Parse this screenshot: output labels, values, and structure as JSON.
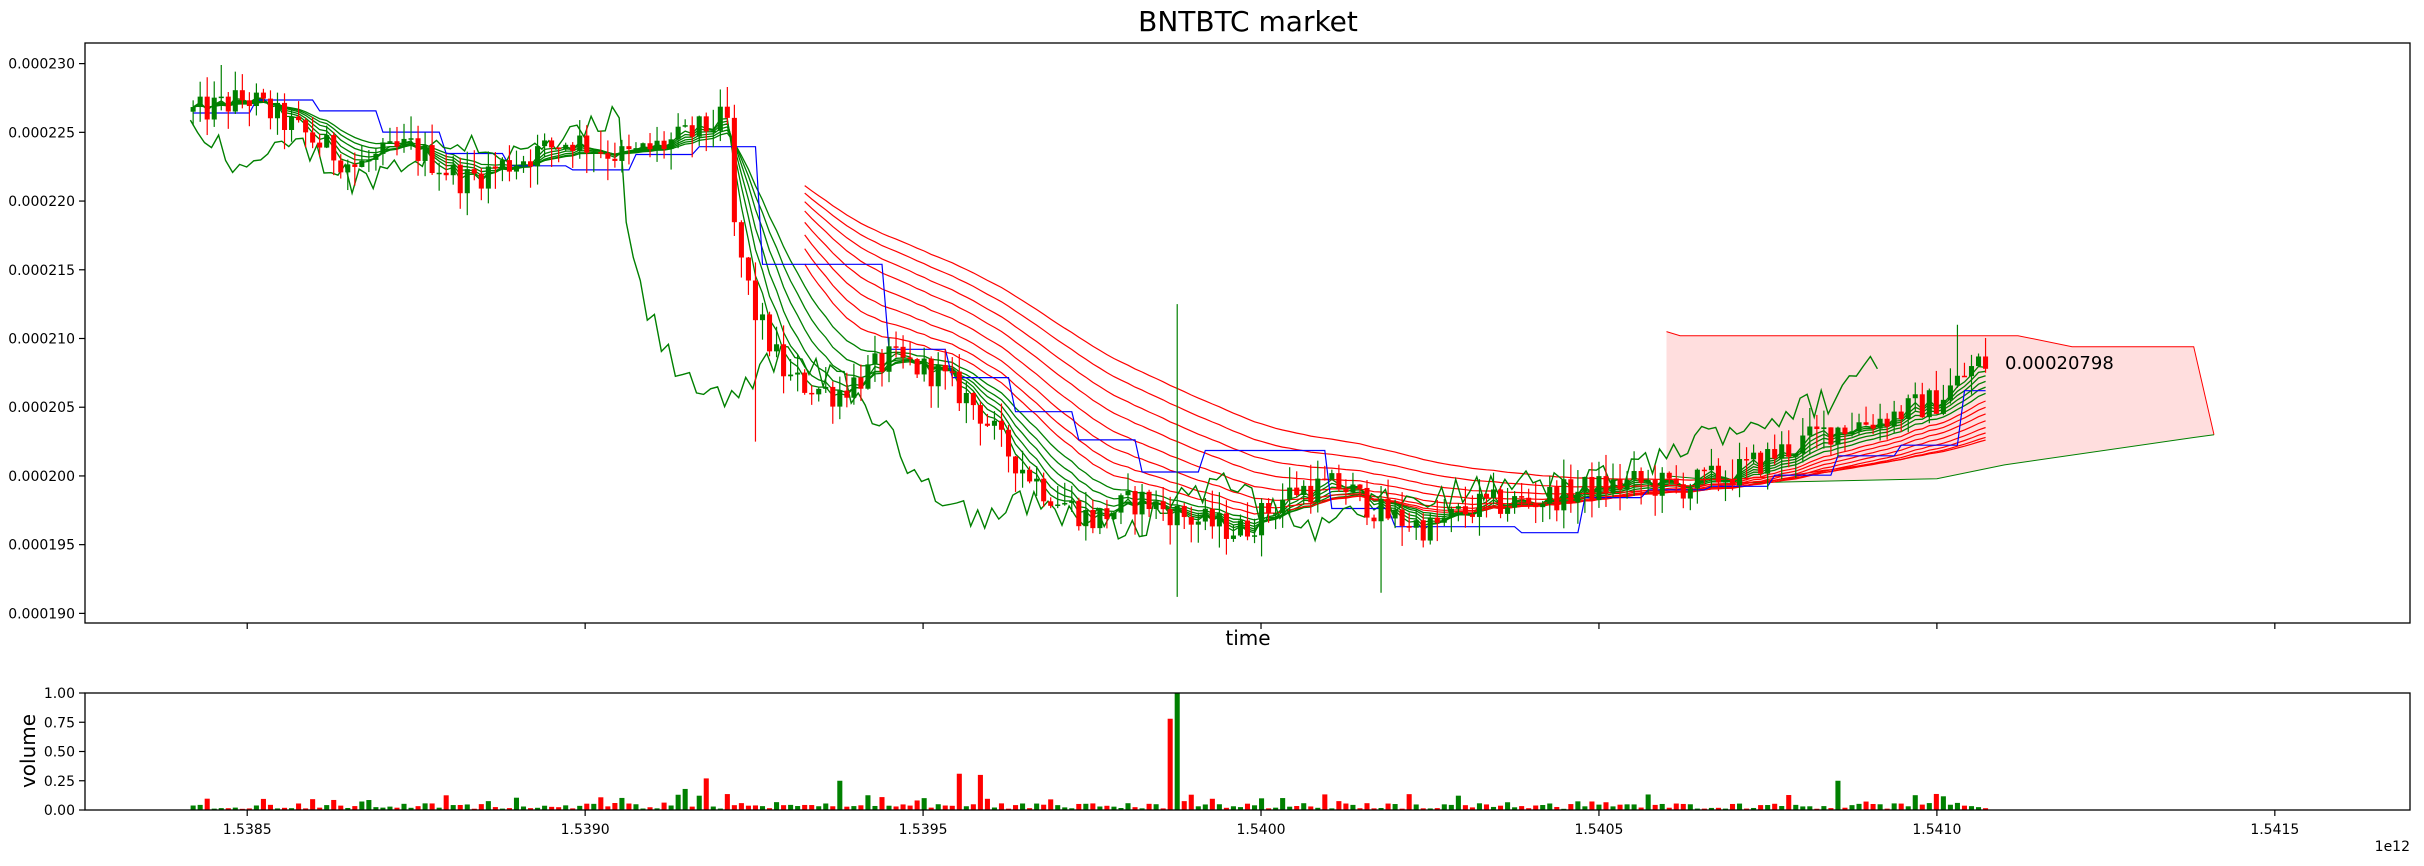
{
  "chart_data": [
    {
      "type": "candlestick",
      "title": "BNTBTC market",
      "xlabel": "time",
      "ylabel": "",
      "x_offset_label": "1e12",
      "xlim": [
        1.53826,
        1.5417
      ],
      "ylim": [
        0.0001893,
        0.0002315
      ],
      "yticks": [
        {
          "value": 0.00019,
          "label": "0.000190"
        },
        {
          "value": 0.000195,
          "label": "0.000195"
        },
        {
          "value": 0.0002,
          "label": "0.000200"
        },
        {
          "value": 0.000205,
          "label": "0.000205"
        },
        {
          "value": 0.00021,
          "label": "0.000210"
        },
        {
          "value": 0.000215,
          "label": "0.000215"
        },
        {
          "value": 0.00022,
          "label": "0.000220"
        },
        {
          "value": 0.000225,
          "label": "0.000225"
        },
        {
          "value": 0.00023,
          "label": "0.000230"
        }
      ],
      "xticks": [
        {
          "value": 1.5385,
          "label": "1.5385"
        },
        {
          "value": 1.539,
          "label": "1.5390"
        },
        {
          "value": 1.5395,
          "label": "1.5395"
        },
        {
          "value": 1.54,
          "label": "1.5400"
        },
        {
          "value": 1.5405,
          "label": "1.5405"
        },
        {
          "value": 1.541,
          "label": "1.5410"
        },
        {
          "value": 1.5415,
          "label": "1.5415"
        }
      ],
      "colors": {
        "up": "#008000",
        "down": "#ff0000",
        "base_line": "#0000ff",
        "cloud_fill": "#ffdede",
        "cloud_edge_red": "#ff0000",
        "cloud_edge_green": "#008000"
      },
      "price_annotation": {
        "x": 1.54106,
        "y": 0.00020798,
        "label": "0.00020798"
      },
      "price_anchors": [
        [
          1.53843,
          0.0002265
        ],
        [
          1.5385,
          0.0002275
        ],
        [
          1.53858,
          0.000225
        ],
        [
          1.53866,
          0.0002225
        ],
        [
          1.53874,
          0.000224
        ],
        [
          1.53882,
          0.0002215
        ],
        [
          1.5389,
          0.000223
        ],
        [
          1.53898,
          0.0002245
        ],
        [
          1.53906,
          0.0002232
        ],
        [
          1.53914,
          0.0002245
        ],
        [
          1.53921,
          0.000226
        ],
        [
          1.53922,
          0.000218
        ],
        [
          1.53925,
          0.000212
        ],
        [
          1.5393,
          0.000207
        ],
        [
          1.53937,
          0.000206
        ],
        [
          1.53945,
          0.0002085
        ],
        [
          1.53952,
          0.0002075
        ],
        [
          1.53958,
          0.000205
        ],
        [
          1.53962,
          0.000202
        ],
        [
          1.53968,
          0.000199
        ],
        [
          1.53975,
          0.0001968
        ],
        [
          1.53982,
          0.0001983
        ],
        [
          1.5399,
          0.0001968
        ],
        [
          1.53997,
          0.000196
        ],
        [
          1.54005,
          0.000199
        ],
        [
          1.54012,
          0.0001993
        ],
        [
          1.54018,
          0.0001972
        ],
        [
          1.54025,
          0.0001962
        ],
        [
          1.54032,
          0.0001978
        ],
        [
          1.5404,
          0.0001982
        ],
        [
          1.54048,
          0.000199
        ],
        [
          1.54055,
          0.0001995
        ],
        [
          1.54062,
          0.0001992
        ],
        [
          1.5407,
          0.0002002
        ],
        [
          1.54078,
          0.000202
        ],
        [
          1.54085,
          0.0002035
        ],
        [
          1.54092,
          0.0002042
        ],
        [
          1.541,
          0.0002055
        ],
        [
          1.54106,
          0.0002082
        ],
        [
          1.5411,
          0.000208
        ]
      ],
      "volume_spikes": [
        [
          1.53988,
          1.0
        ],
        [
          1.53987,
          0.78
        ],
        [
          1.53918,
          0.27
        ],
        [
          1.53955,
          0.31
        ],
        [
          1.53959,
          0.3
        ],
        [
          1.53938,
          0.25
        ],
        [
          1.54085,
          0.25
        ],
        [
          1.53915,
          0.18
        ]
      ]
    },
    {
      "type": "bar",
      "title": "",
      "xlabel": "",
      "ylabel": "volume",
      "x_offset_label": "1e12",
      "xlim": [
        1.53826,
        1.5417
      ],
      "ylim": [
        0,
        1.0
      ],
      "yticks": [
        {
          "value": 0.0,
          "label": "0.00"
        },
        {
          "value": 0.25,
          "label": "0.25"
        },
        {
          "value": 0.5,
          "label": "0.50"
        },
        {
          "value": 0.75,
          "label": "0.75"
        },
        {
          "value": 1.0,
          "label": "1.00"
        }
      ],
      "xticks": [
        {
          "value": 1.5385,
          "label": "1.5385"
        },
        {
          "value": 1.539,
          "label": "1.5390"
        },
        {
          "value": 1.5395,
          "label": "1.5395"
        },
        {
          "value": 1.54,
          "label": "1.5400"
        },
        {
          "value": 1.5405,
          "label": "1.5405"
        },
        {
          "value": 1.541,
          "label": "1.5410"
        },
        {
          "value": 1.5415,
          "label": "1.5415"
        }
      ]
    }
  ]
}
